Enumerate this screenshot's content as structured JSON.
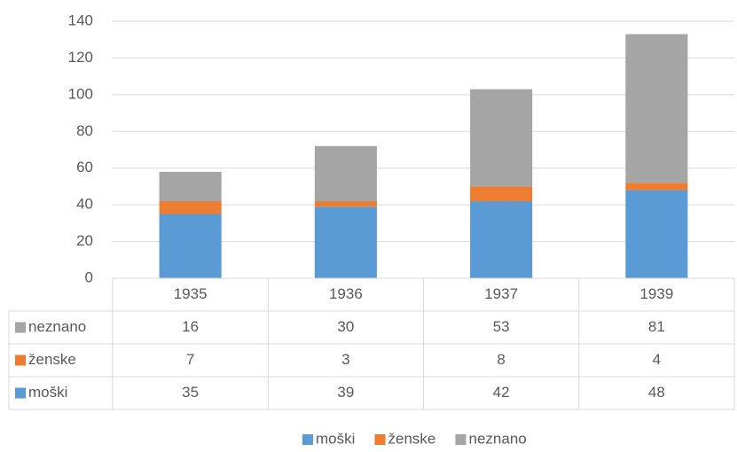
{
  "chart_data": {
    "type": "bar",
    "stacked": true,
    "data_table": true,
    "categories": [
      "1935",
      "1936",
      "1937",
      "1939"
    ],
    "series": [
      {
        "name": "moški",
        "color": "#5b9bd5",
        "values": [
          35,
          39,
          42,
          48
        ]
      },
      {
        "name": "ženske",
        "color": "#ed7d31",
        "values": [
          7,
          3,
          8,
          4
        ]
      },
      {
        "name": "neznano",
        "color": "#a5a5a5",
        "values": [
          16,
          30,
          53,
          81
        ]
      }
    ],
    "ylim": [
      0,
      140
    ],
    "yticks": [
      0,
      20,
      40,
      60,
      80,
      100,
      120,
      140
    ],
    "grid": true,
    "legend": "bottom"
  }
}
